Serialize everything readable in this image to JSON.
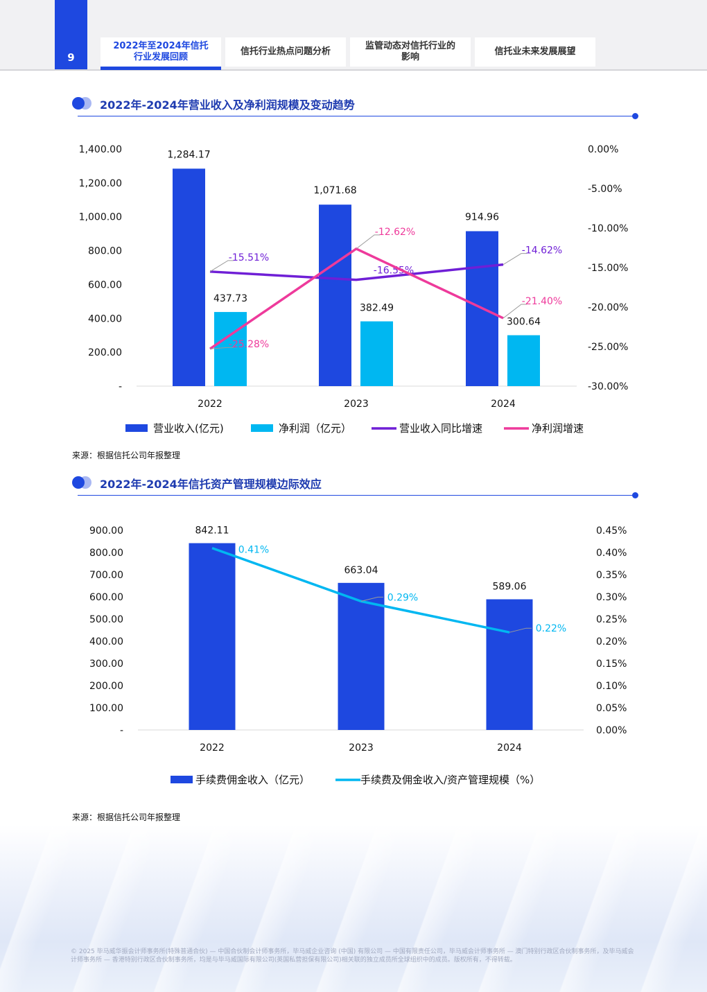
{
  "header": {
    "page_number": "9",
    "tabs": [
      {
        "label": "2022年至2024年信托行业发展回顾",
        "active": true
      },
      {
        "label": "信托行业热点问题分析",
        "active": false
      },
      {
        "label": "监管动态对信托行业的影响",
        "active": false
      },
      {
        "label": "信托业未来发展展望",
        "active": false
      }
    ]
  },
  "sections": [
    {
      "title": "2022年-2024年营业收入及净利润规模及变动趋势",
      "source": "来源：根据信托公司年报整理"
    },
    {
      "title": "2022年-2024年信托资产管理规模边际效应",
      "source": "来源：根据信托公司年报整理"
    }
  ],
  "chart_data": [
    {
      "type": "bar",
      "title": "2022年-2024年营业收入及净利润规模及变动趋势",
      "categories": [
        "2022",
        "2023",
        "2024"
      ],
      "series": [
        {
          "name": "营业收入(亿元)",
          "kind": "bar",
          "axis": "left",
          "values": [
            1284.17,
            1071.68,
            914.96
          ],
          "labels": [
            "1,284.17",
            "1,071.68",
            "914.96"
          ],
          "color": "#1e48e0"
        },
        {
          "name": "净利润（亿元）",
          "kind": "bar",
          "axis": "left",
          "values": [
            437.73,
            382.49,
            300.64
          ],
          "labels": [
            "437.73",
            "382.49",
            "300.64"
          ],
          "color": "#00b7f1"
        },
        {
          "name": "营业收入同比增速",
          "kind": "line",
          "axis": "right",
          "values": [
            -15.51,
            -16.55,
            -14.62
          ],
          "labels": [
            "-15.51%",
            "-16.55%",
            "-14.62%"
          ],
          "color": "#6f1fd6"
        },
        {
          "name": "净利润增速",
          "kind": "line",
          "axis": "right",
          "values": [
            -25.28,
            -12.62,
            -21.4
          ],
          "labels": [
            "-25.28%",
            "-12.62%",
            "-21.40%"
          ],
          "color": "#ee3a9b"
        }
      ],
      "left_axis": {
        "ylim": [
          0,
          1400
        ],
        "ticks": [
          "-",
          "200.00",
          "400.00",
          "600.00",
          "800.00",
          "1,000.00",
          "1,200.00",
          "1,400.00"
        ]
      },
      "right_axis": {
        "ylim": [
          -30,
          0
        ],
        "ticks": [
          "-30.00%",
          "-25.00%",
          "-20.00%",
          "-15.00%",
          "-10.00%",
          "-5.00%",
          "0.00%"
        ]
      },
      "grid": false,
      "legend_position": "bottom"
    },
    {
      "type": "bar",
      "title": "2022年-2024年信托资产管理规模边际效应",
      "categories": [
        "2022",
        "2023",
        "2024"
      ],
      "series": [
        {
          "name": "手续费佣金收入（亿元）",
          "kind": "bar",
          "axis": "left",
          "values": [
            842.11,
            663.04,
            589.06
          ],
          "labels": [
            "842.11",
            "663.04",
            "589.06"
          ],
          "color": "#1e48e0"
        },
        {
          "name": "手续费及佣金收入/资产管理规模（%）",
          "kind": "line",
          "axis": "right",
          "values": [
            0.41,
            0.29,
            0.22
          ],
          "labels": [
            "0.41%",
            "0.29%",
            "0.22%"
          ],
          "color": "#00b7f1"
        }
      ],
      "left_axis": {
        "ylim": [
          0,
          900
        ],
        "ticks": [
          "-",
          "100.00",
          "200.00",
          "300.00",
          "400.00",
          "500.00",
          "600.00",
          "700.00",
          "800.00",
          "900.00"
        ]
      },
      "right_axis": {
        "ylim": [
          0,
          0.45
        ],
        "ticks": [
          "0.00%",
          "0.05%",
          "0.10%",
          "0.15%",
          "0.20%",
          "0.25%",
          "0.30%",
          "0.35%",
          "0.40%",
          "0.45%"
        ]
      },
      "grid": false,
      "legend_position": "bottom"
    }
  ],
  "footer": {
    "text": "© 2025 毕马威华振会计师事务所(特殊普通合伙) — 中国合伙制会计师事务所，毕马威企业咨询 (中国) 有限公司 — 中国有限责任公司，毕马威会计师事务所 — 澳门特别行政区合伙制事务所，及毕马威会计师事务所 — 香港特别行政区合伙制事务所，均是与毕马威国际有限公司(英国私营担保有限公司)相关联的独立成员所全球组织中的成员。版权所有，不得转载。"
  }
}
